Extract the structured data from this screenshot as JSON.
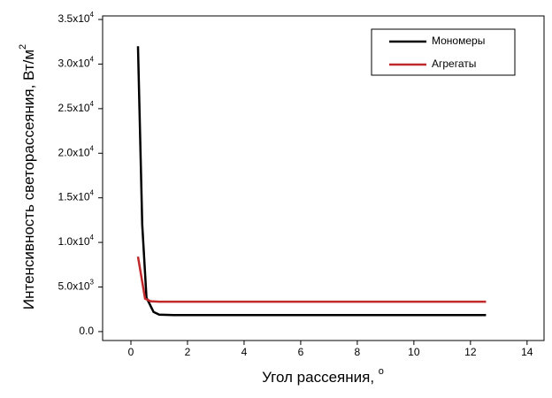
{
  "chart_data": {
    "type": "line",
    "xlabel": "Угол рассеяния, ",
    "xlabel_sup": "o",
    "ylabel": "Интенсивность светорассеяния, Вт/м",
    "ylabel_sup": "2",
    "xlim": [
      -1,
      14.6
    ],
    "ylim": [
      -1000,
      35400
    ],
    "xticks": [
      0,
      2,
      4,
      6,
      8,
      10,
      12,
      14
    ],
    "yticks": [
      {
        "value": 0,
        "label": "0.0"
      },
      {
        "value": 5000,
        "label": "5.0x10",
        "label_sup": "3"
      },
      {
        "value": 10000,
        "label": "1.0x10",
        "label_sup": "4"
      },
      {
        "value": 15000,
        "label": "1.5x10",
        "label_sup": "4"
      },
      {
        "value": 20000,
        "label": "2.0x10",
        "label_sup": "4"
      },
      {
        "value": 25000,
        "label": "2.5x10",
        "label_sup": "4"
      },
      {
        "value": 30000,
        "label": "3.0x10",
        "label_sup": "4"
      },
      {
        "value": 35000,
        "label": "3.5x10",
        "label_sup": "4"
      }
    ],
    "legend": "top-right",
    "series": [
      {
        "name": "Мономеры",
        "color": "#000000",
        "x": [
          0.25,
          0.4,
          0.55,
          0.8,
          1.0,
          1.5,
          3,
          6,
          9,
          12.55
        ],
        "values": [
          32000,
          12000,
          3800,
          2200,
          1900,
          1850,
          1850,
          1850,
          1850,
          1850
        ]
      },
      {
        "name": "Агрегаты",
        "color": "#c0282a",
        "x": [
          0.25,
          0.5,
          0.7,
          1.0,
          3,
          6,
          9,
          12.55
        ],
        "values": [
          8400,
          3700,
          3400,
          3350,
          3350,
          3350,
          3350,
          3350
        ]
      }
    ]
  }
}
